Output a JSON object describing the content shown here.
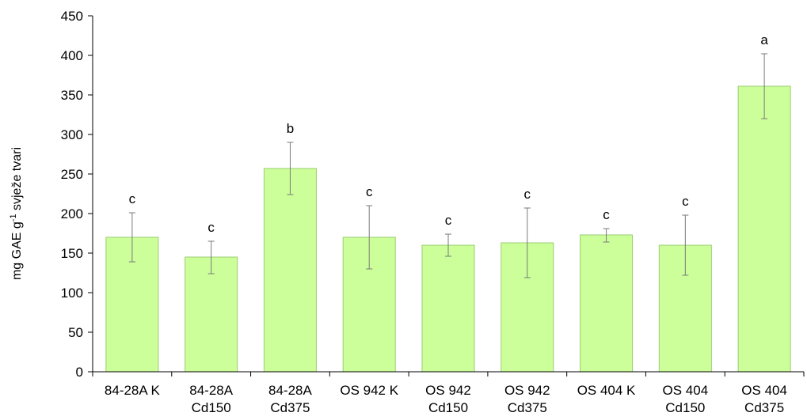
{
  "chart_data": {
    "type": "bar",
    "ylabel": {
      "prefix": "mg GAE g",
      "superscript": "-1",
      "suffix": " svježe tvari"
    },
    "ylim": [
      0,
      450
    ],
    "yticks": [
      0,
      50,
      100,
      150,
      200,
      250,
      300,
      350,
      400,
      450
    ],
    "categories": [
      [
        "84-28A K"
      ],
      [
        "84-28A",
        "Cd150"
      ],
      [
        "84-28A",
        "Cd375"
      ],
      [
        "OS 942 K"
      ],
      [
        "OS 942",
        "Cd150"
      ],
      [
        "OS 942",
        "Cd375"
      ],
      [
        "OS 404 K"
      ],
      [
        "OS 404",
        "Cd150"
      ],
      [
        "OS 404",
        "Cd375"
      ]
    ],
    "values": [
      170,
      145,
      257,
      170,
      160,
      163,
      173,
      160,
      361
    ],
    "error_low": [
      139,
      124,
      224,
      130,
      146,
      119,
      164,
      122,
      320
    ],
    "error_high": [
      201,
      165,
      290,
      210,
      174,
      207,
      181,
      198,
      402
    ],
    "significance": [
      "c",
      "c",
      "b",
      "c",
      "c",
      "c",
      "c",
      "c",
      "a"
    ],
    "grid": false,
    "legend": "none",
    "bar_fill": "#ccff99",
    "bar_stroke": "#9acd72"
  }
}
